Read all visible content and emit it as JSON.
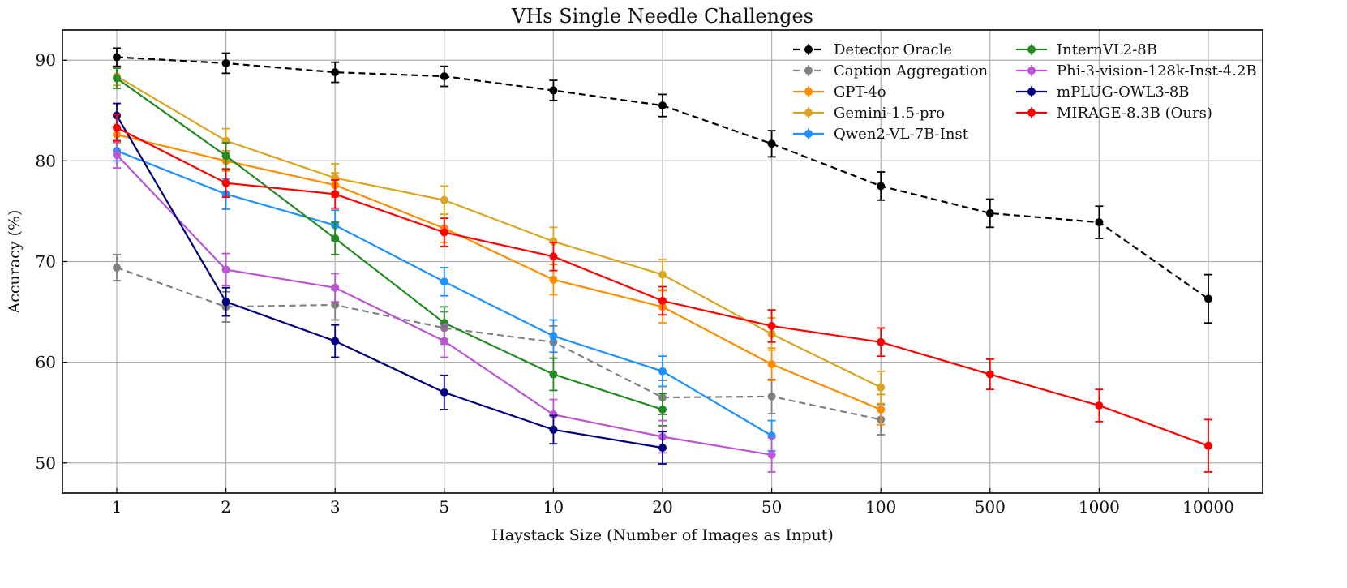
{
  "chart_data": {
    "type": "line",
    "title": "VHs Single Needle Challenges",
    "xlabel": "Haystack Size (Number of Images as Input)",
    "ylabel": "Accuracy (%)",
    "x_scale": "categorical",
    "categories": [
      "1",
      "2",
      "3",
      "5",
      "10",
      "20",
      "50",
      "100",
      "500",
      "1000",
      "10000"
    ],
    "ylim": [
      47,
      93
    ],
    "yticks": [
      50,
      60,
      70,
      80,
      90
    ],
    "grid": true,
    "error_bars": true,
    "legend_position": "top-right",
    "legend_columns": 2,
    "series": [
      {
        "name": "Detector Oracle",
        "color": "#000000",
        "dash": true,
        "values": [
          90.3,
          89.7,
          88.8,
          88.4,
          87.0,
          85.5,
          81.7,
          77.5,
          74.8,
          73.9,
          66.3
        ],
        "errors": [
          0.9,
          1.0,
          1.0,
          1.0,
          1.0,
          1.1,
          1.3,
          1.4,
          1.4,
          1.6,
          2.4
        ]
      },
      {
        "name": "Caption Aggregation",
        "color": "#808080",
        "dash": true,
        "values": [
          69.4,
          65.5,
          65.7,
          63.4,
          62.0,
          56.5,
          56.6,
          54.3,
          null,
          null,
          null
        ],
        "errors": [
          1.3,
          1.5,
          1.5,
          1.6,
          1.6,
          1.7,
          1.7,
          1.5,
          null,
          null,
          null
        ]
      },
      {
        "name": "GPT-4o",
        "color": "#ff8c00",
        "dash": false,
        "values": [
          82.6,
          80.0,
          77.6,
          73.3,
          68.2,
          65.5,
          59.8,
          55.3,
          null,
          null,
          null
        ],
        "errors": [
          0.8,
          1.0,
          1.2,
          1.4,
          1.5,
          1.6,
          1.6,
          1.5,
          null,
          null,
          null
        ]
      },
      {
        "name": "Gemini-1.5-pro",
        "color": "#daa520",
        "dash": false,
        "values": [
          88.4,
          82.0,
          78.3,
          76.1,
          72.0,
          68.7,
          62.8,
          57.5,
          null,
          null,
          null
        ],
        "errors": [
          0.9,
          1.2,
          1.4,
          1.4,
          1.4,
          1.5,
          1.6,
          1.6,
          null,
          null,
          null
        ]
      },
      {
        "name": "Qwen2-VL-7B-Inst",
        "color": "#1e90ff",
        "dash": false,
        "values": [
          81.0,
          76.7,
          73.6,
          68.0,
          62.6,
          59.1,
          52.7,
          null,
          null,
          null,
          null
        ],
        "errors": [
          1.0,
          1.5,
          1.5,
          1.4,
          1.6,
          1.5,
          1.5,
          null,
          null,
          null,
          null
        ]
      },
      {
        "name": "InternVL2-8B",
        "color": "#228b22",
        "dash": false,
        "values": [
          88.2,
          80.5,
          72.3,
          63.9,
          58.8,
          55.3,
          null,
          null,
          null,
          null,
          null
        ],
        "errors": [
          1.0,
          1.3,
          1.6,
          1.6,
          1.6,
          1.6,
          null,
          null,
          null,
          null,
          null
        ]
      },
      {
        "name": "Phi-3-vision-128k-Inst-4.2B",
        "color": "#ba55d3",
        "dash": false,
        "values": [
          80.6,
          69.2,
          67.4,
          62.1,
          54.8,
          52.6,
          50.8,
          null,
          null,
          null,
          null
        ],
        "errors": [
          1.3,
          1.6,
          1.4,
          1.6,
          1.5,
          1.6,
          1.7,
          null,
          null,
          null,
          null
        ]
      },
      {
        "name": "mPLUG-OWL3-8B",
        "color": "#000080",
        "dash": false,
        "values": [
          84.5,
          66.0,
          62.1,
          57.0,
          53.3,
          51.5,
          null,
          null,
          null,
          null,
          null
        ],
        "errors": [
          1.2,
          1.4,
          1.6,
          1.7,
          1.4,
          1.6,
          null,
          null,
          null,
          null,
          null
        ]
      },
      {
        "name": "MIRAGE-8.3B (Ours)",
        "color": "#ff0000",
        "dash": false,
        "values": [
          83.3,
          77.8,
          76.7,
          72.9,
          70.5,
          66.1,
          63.6,
          62.0,
          58.8,
          55.7,
          51.7
        ],
        "errors": [
          1.3,
          1.4,
          1.4,
          1.4,
          1.4,
          1.4,
          1.6,
          1.4,
          1.5,
          1.6,
          2.6
        ]
      }
    ]
  }
}
